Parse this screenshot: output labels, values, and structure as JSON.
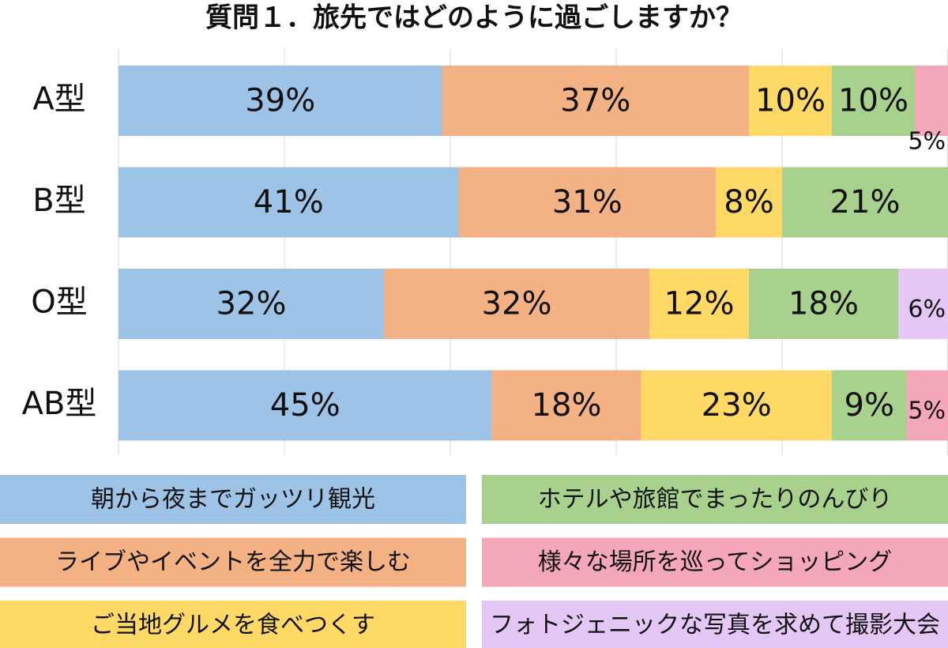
{
  "chart_data": {
    "type": "stacked-bar-horizontal",
    "title": "質問１．旅先ではどのように過ごしますか？",
    "categories": [
      "A型",
      "B型",
      "O型",
      "AB型"
    ],
    "series": [
      {
        "name": "朝から夜までガッツリ観光",
        "color": "#9dc3e6",
        "values": [
          39,
          41,
          32,
          45
        ],
        "value_labels": [
          "39%",
          "41%",
          "32%",
          "45%"
        ]
      },
      {
        "name": "ライブやイベントを全力で楽しむ",
        "color": "#f4b183",
        "values": [
          37,
          31,
          32,
          18
        ],
        "value_labels": [
          "37%",
          "31%",
          "32%",
          "18%"
        ]
      },
      {
        "name": "ご当地グルメを食べつくす",
        "color": "#ffd966",
        "values": [
          10,
          8,
          12,
          23
        ],
        "value_labels": [
          "10%",
          "8%",
          "12%",
          "23%"
        ]
      },
      {
        "name": "ホテルや旅館でまったりのんびり",
        "color": "#a9d18e",
        "values": [
          10,
          21,
          18,
          9
        ],
        "value_labels": [
          "10%",
          "21%",
          "18%",
          "9%"
        ]
      },
      {
        "name": "様々な場所を巡ってショッピング",
        "color": "#f4a7b9",
        "values": [
          5,
          null,
          null,
          5
        ],
        "value_labels": [
          "5%",
          null,
          null,
          "5%"
        ]
      },
      {
        "name": "フォトジェニックな写真を求めて撮影大会",
        "color": "#e4c7f5",
        "values": [
          null,
          null,
          6,
          null
        ],
        "value_labels": [
          null,
          null,
          "6%",
          null
        ]
      }
    ],
    "xlim": [
      0,
      100
    ],
    "xticks": [
      0,
      20,
      40,
      60,
      80,
      100
    ],
    "grid": true
  }
}
